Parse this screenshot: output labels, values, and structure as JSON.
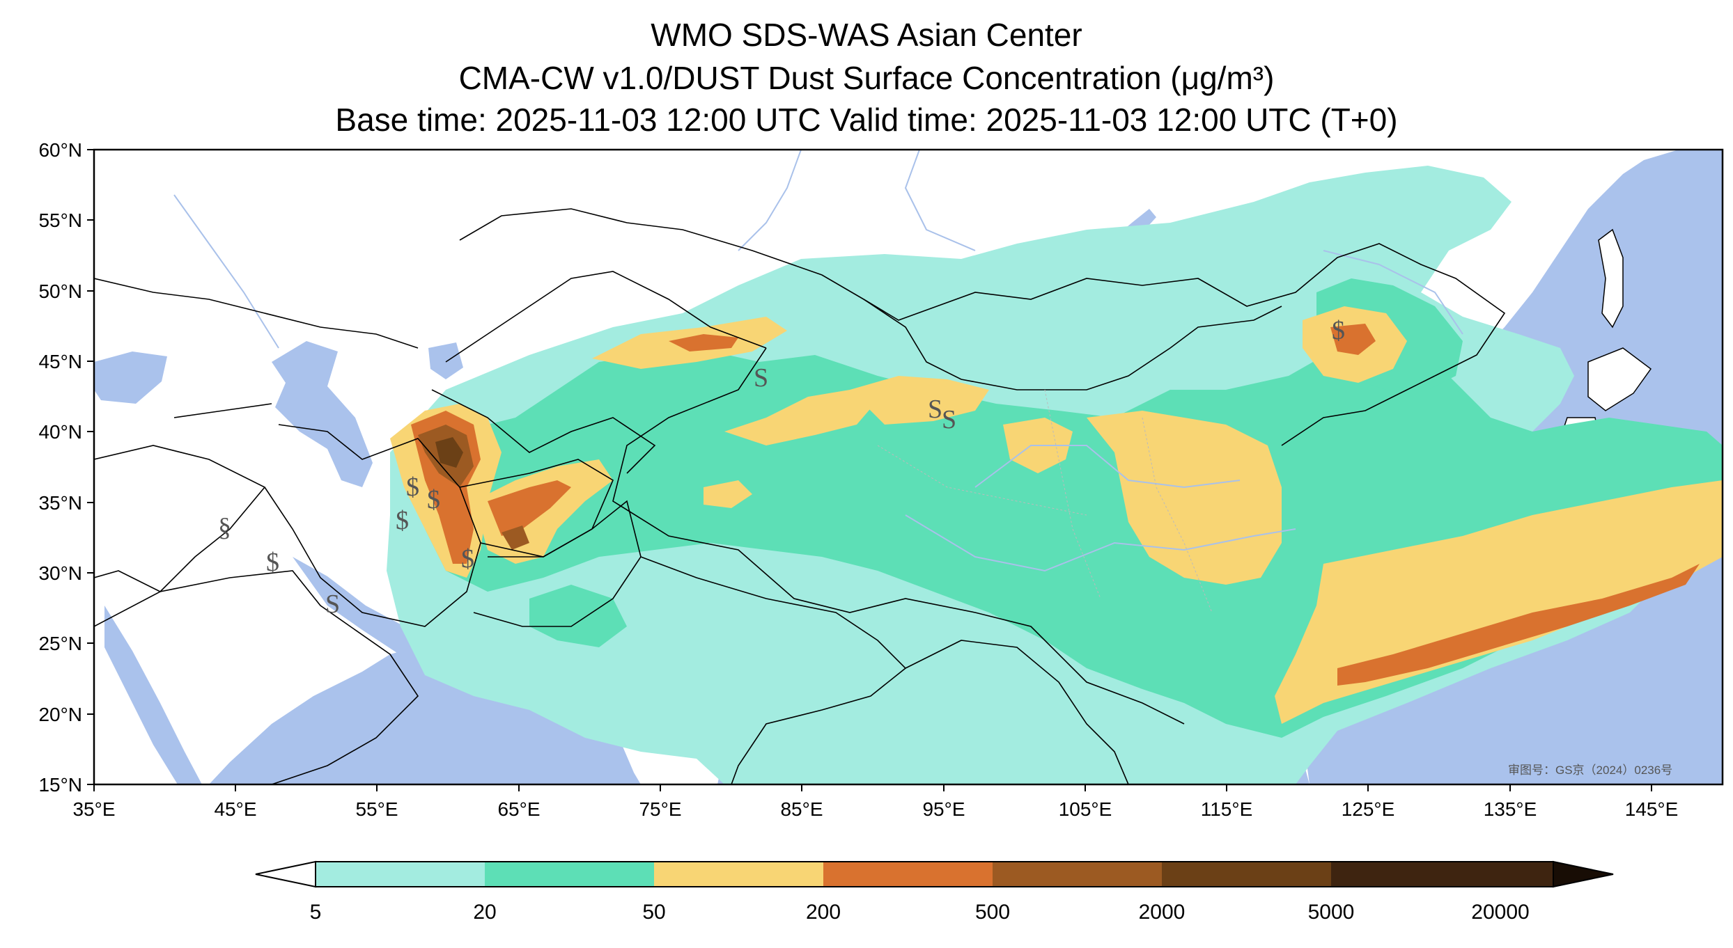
{
  "title": {
    "line1": "WMO SDS-WAS Asian Center",
    "line2": "CMA-CW v1.0/DUST Dust Surface Concentration (μg/m³)",
    "line3": "Base time: 2025-11-03 12:00 UTC Valid time: 2025-11-03 12:00 UTC (T+0)"
  },
  "axes": {
    "lat_labels": [
      "60°N",
      "55°N",
      "50°N",
      "45°N",
      "40°N",
      "35°N",
      "30°N",
      "25°N",
      "20°N",
      "15°N"
    ],
    "lon_labels": [
      "35°E",
      "45°E",
      "55°E",
      "65°E",
      "75°E",
      "85°E",
      "95°E",
      "105°E",
      "115°E",
      "125°E",
      "135°E",
      "145°E"
    ]
  },
  "colorbar": {
    "ticks": [
      "5",
      "20",
      "50",
      "200",
      "500",
      "2000",
      "5000",
      "20000"
    ],
    "colors": [
      "#a3ece0",
      "#5ddfb6",
      "#f8d574",
      "#d9722f",
      "#9c5a22",
      "#6b4016",
      "#3e2410"
    ],
    "extend_low": "#ffffff",
    "extend_high": "#180d05"
  },
  "colors": {
    "ocean": "#aac2ec",
    "land": "#ffffff",
    "border": "#000000",
    "river": "#a9c1ea"
  },
  "stamp": "审图号：GS京（2024）0236号",
  "symbols": [
    "$",
    "§",
    "S"
  ]
}
